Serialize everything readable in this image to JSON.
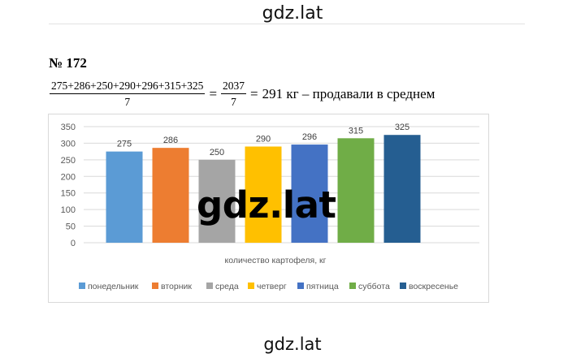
{
  "header": {
    "watermark": "gdz.lat"
  },
  "problem": {
    "number": "№ 172",
    "numerator": "275+286+250+290+296+315+325",
    "denominator": "7",
    "eq1": "=",
    "frac2_numerator": "2037",
    "frac2_denominator": "7",
    "eq2": "=",
    "result": "291 кг – продавали в среднем"
  },
  "chart_data": {
    "type": "bar",
    "title": "",
    "xlabel": "количество картофеля, кг",
    "ylabel": "",
    "ylim": [
      0,
      350
    ],
    "yticks": [
      0,
      50,
      100,
      150,
      200,
      250,
      300,
      350
    ],
    "legend_position": "bottom",
    "grid": true,
    "series": [
      {
        "name": "понедельник",
        "value": 275,
        "color": "#5B9BD5"
      },
      {
        "name": "вторник",
        "value": 286,
        "color": "#ED7D31"
      },
      {
        "name": "среда",
        "value": 250,
        "color": "#A5A5A5"
      },
      {
        "name": "четверг",
        "value": 290,
        "color": "#FFC000"
      },
      {
        "name": "пятница",
        "value": 296,
        "color": "#4472C4"
      },
      {
        "name": "суббота",
        "value": 315,
        "color": "#70AD47"
      },
      {
        "name": "воскресенье",
        "value": 325,
        "color": "#255E91"
      }
    ]
  },
  "watermark_center": "gdz.lat",
  "footer": {
    "watermark": "gdz.lat"
  }
}
